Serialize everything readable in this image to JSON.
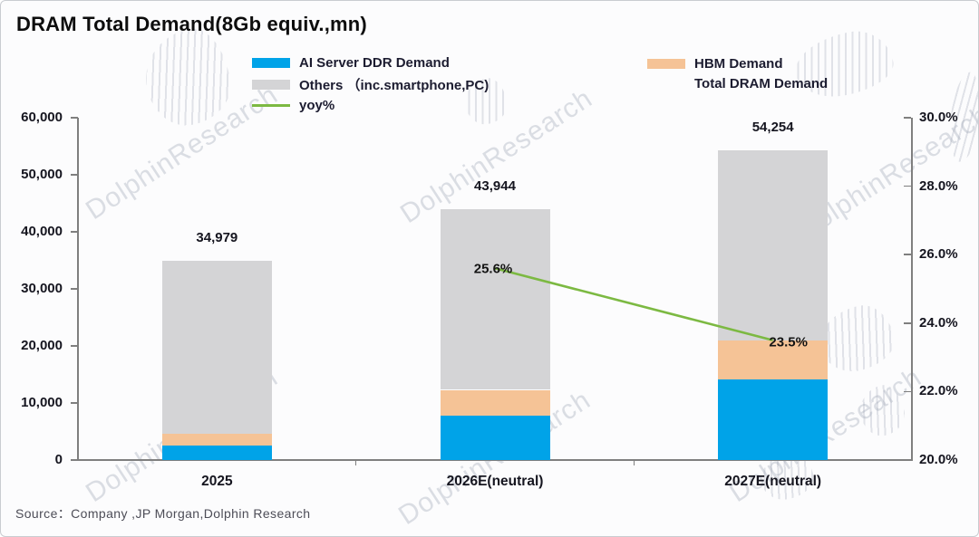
{
  "title": "DRAM Total Demand(8Gb equiv.,mn)",
  "source": "Source：Company ,JP Morgan,Dolphin Research",
  "watermark_text": "DolphinResearch",
  "legend": [
    {
      "label": "AI Server DDR Demand",
      "color": "#00A3E8",
      "type": "box"
    },
    {
      "label": "HBM Demand",
      "color": "#F5C396",
      "type": "box"
    },
    {
      "label": "Others （inc.smartphone,PC)",
      "color": "#D4D4D6",
      "type": "box"
    },
    {
      "label": "Total DRAM Demand",
      "color": "",
      "type": "none"
    },
    {
      "label": "yoy%",
      "color": "#7CB942",
      "type": "line"
    }
  ],
  "chart_data": {
    "type": "bar",
    "subtype": "stacked-bar-with-line",
    "categories": [
      "2025",
      "2026E(neutral)",
      "2027E(neutral)"
    ],
    "series": [
      {
        "name": "AI Server DDR Demand",
        "color": "#00A3E8",
        "values": [
          2500,
          7800,
          14200
        ]
      },
      {
        "name": "HBM Demand",
        "color": "#F5C396",
        "values": [
          2100,
          4500,
          6700
        ]
      },
      {
        "name": "Others (inc.smartphone,PC)",
        "color": "#D4D4D6",
        "values": [
          30379,
          31644,
          33354
        ]
      }
    ],
    "totals": [
      34979,
      43944,
      54254
    ],
    "total_labels": [
      "34,979",
      "43,944",
      "54,254"
    ],
    "line_series": {
      "name": "yoy%",
      "color": "#7CB942",
      "values": [
        null,
        25.6,
        23.5
      ],
      "labels": [
        null,
        "25.6%",
        "23.5%"
      ]
    },
    "left_axis": {
      "min": 0,
      "max": 60000,
      "step": 10000,
      "tick_labels": [
        "0",
        "10,000",
        "20,000",
        "30,000",
        "40,000",
        "50,000",
        "60,000"
      ]
    },
    "right_axis": {
      "min": 20,
      "max": 30,
      "step": 2,
      "tick_labels": [
        "20.0%",
        "22.0%",
        "24.0%",
        "26.0%",
        "28.0%",
        "30.0%"
      ]
    },
    "grid": false,
    "legend_position": "top"
  }
}
